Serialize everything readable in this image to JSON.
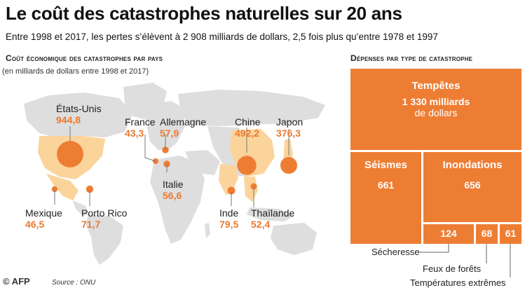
{
  "header": {
    "title": "Le coût des catastrophes naturelles sur 20 ans",
    "subtitle": "Entre 1998 et 2017, les pertes s’élèvent à 2 908 milliards de dollars, 2,5 fois plus qu’entre 1978 et 1997"
  },
  "left_panel": {
    "heading": "Coût économique des catastrophes par pays",
    "subheading": "(en milliards de dollars entre 1998 et 2017)"
  },
  "right_panel": {
    "heading": "Dépenses par type de catastrophe"
  },
  "footer": {
    "logo": "© AFP",
    "source": "Source : ONU"
  },
  "colors": {
    "accent": "#ee7d34",
    "highlight_country": "#fbd49c",
    "land": "#dedede"
  },
  "chart_data": [
    {
      "type": "bubble-map",
      "title": "Coût économique des catastrophes par pays",
      "unit": "en milliards de dollars entre 1998 et 2017",
      "categories": [
        "États-Unis",
        "France",
        "Allemagne",
        "Italie",
        "Chine",
        "Japon",
        "Mexique",
        "Porto Rico",
        "Inde",
        "Thaïlande"
      ],
      "values": [
        944.8,
        43.3,
        57.9,
        56.6,
        492.2,
        376.3,
        46.5,
        71.7,
        79.5,
        52.4
      ],
      "labels": [
        "944,8",
        "43,3",
        "57,9",
        "56,6",
        "492,2",
        "376,3",
        "46,5",
        "71,7",
        "79,5",
        "52,4"
      ]
    },
    {
      "type": "treemap",
      "title": "Dépenses par type de catastrophe",
      "categories": [
        "Tempêtes",
        "Séismes",
        "Inondations",
        "Sécheresse",
        "Feux de forêts",
        "Températures extrêmes"
      ],
      "values": [
        1330,
        661,
        656,
        124,
        68,
        61
      ],
      "labels": [
        "1 330 milliards",
        "661",
        "656",
        "124",
        "68",
        "61"
      ],
      "unit_label": "de dollars"
    }
  ]
}
